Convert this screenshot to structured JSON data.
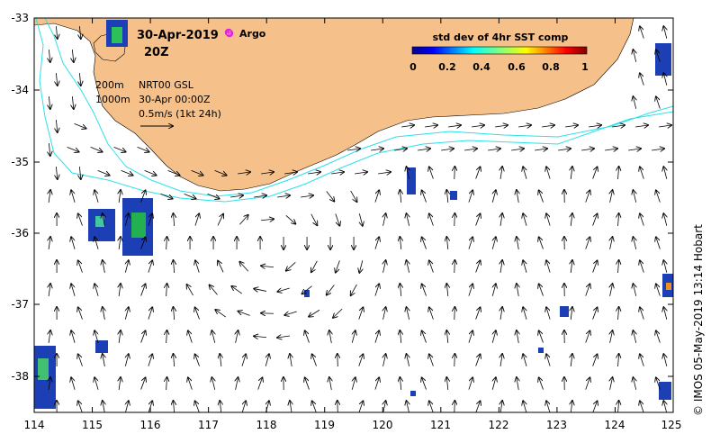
{
  "map": {
    "date": "30-Apr-2019",
    "hour": "20Z",
    "argo_label": "Argo",
    "legend_title": "std dev of 4hr SST comp",
    "legend_ticks": [
      "0",
      "0.2",
      "0.4",
      "0.6",
      "0.8",
      "1"
    ],
    "contour_200": "200m",
    "contour_1000": "1000m",
    "product": "NRT00 GSL",
    "product_time": "30-Apr 00:00Z",
    "scale_label": "0.5m/s (1kt 24h)",
    "credit": "© IMOS 05-May-2019 13:14 Hobart",
    "lon_ticks": [
      "114",
      "115",
      "116",
      "117",
      "118",
      "119",
      "120",
      "121",
      "122",
      "123",
      "124",
      "125"
    ],
    "lat_ticks": [
      "-33",
      "-34",
      "-35",
      "-36",
      "-37",
      "-38"
    ],
    "colors": {
      "land": "#f5c089",
      "isobath": "#2de0e8",
      "argo": "#e020e0"
    }
  }
}
